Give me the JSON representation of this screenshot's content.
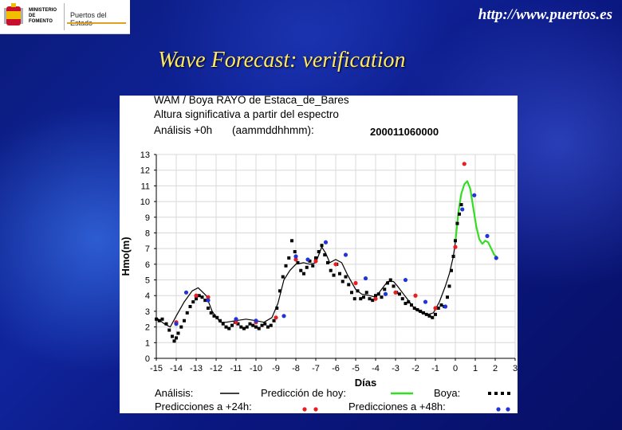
{
  "header": {
    "ministry": "MINISTERIO DE FOMENTO",
    "agency": "Puertos del Estado",
    "url": "http://www.puertos.es",
    "title": "Wave Forecast: verification"
  },
  "colors": {
    "analysis": "#000000",
    "forecast_today": "#33dd22",
    "buoy": "#000000",
    "pred24": "#e81e1e",
    "pred48": "#2234d8",
    "title_yellow": "#ffe766"
  },
  "chart_data": {
    "type": "line",
    "title": "WAM / Boya RAYO de Estaca_de_Bares",
    "subtitle": "Altura significativa a partir del espectro",
    "analysis_label": "Análisis +0h",
    "date_format_label": "(aammddhhmm):",
    "date_value": "200011060000",
    "xlabel": "Días",
    "ylabel": "Hmo(m)",
    "xlim": [
      -15,
      3
    ],
    "ylim": [
      0,
      13
    ],
    "xticks": [
      -15,
      -14,
      -13,
      -12,
      -11,
      -10,
      -9,
      -8,
      -7,
      -6,
      -5,
      -4,
      -3,
      -2,
      -1,
      0,
      1,
      2,
      3
    ],
    "yticks": [
      0,
      1,
      2,
      3,
      4,
      5,
      6,
      7,
      8,
      9,
      10,
      11,
      12,
      13
    ],
    "legend": {
      "analysis": "Análisis:",
      "forecast_today": "Predicción de hoy:",
      "buoy": "Boya:",
      "pred24": "Predicciones a +24h:",
      "pred48": "Predicciones a +48h:"
    },
    "series": [
      {
        "name": "Análisis",
        "style": "line",
        "x": [
          -15,
          -14.6,
          -14.3,
          -14,
          -13.6,
          -13.2,
          -12.9,
          -12.5,
          -12.2,
          -11.8,
          -11.5,
          -11,
          -10.5,
          -10,
          -9.6,
          -9.2,
          -8.9,
          -8.6,
          -8.3,
          -8,
          -7.6,
          -7.3,
          -7,
          -6.7,
          -6.5,
          -6.3,
          -6,
          -5.7,
          -5.4,
          -5,
          -4.7,
          -4.3,
          -4,
          -3.7,
          -3.4,
          -3.1,
          -2.9,
          -2.6,
          -2.3,
          -2,
          -1.7,
          -1.4,
          -1.1,
          -0.8,
          -0.5,
          -0.3,
          -0.1,
          0
        ],
        "values": [
          2.6,
          2.2,
          2.0,
          2.7,
          3.6,
          4.3,
          4.5,
          4.0,
          3.0,
          2.3,
          2.3,
          2.4,
          2.5,
          2.4,
          2.3,
          2.6,
          3.5,
          5.0,
          5.6,
          6.0,
          6.1,
          6.0,
          6.1,
          7.1,
          6.7,
          6.1,
          6.3,
          6.1,
          5.3,
          4.4,
          4.1,
          4.0,
          3.9,
          4.4,
          4.9,
          4.9,
          4.6,
          4.1,
          3.6,
          3.1,
          2.9,
          2.8,
          2.9,
          3.6,
          4.6,
          5.4,
          6.5,
          7.4
        ]
      },
      {
        "name": "Predicción de hoy",
        "style": "line",
        "x": [
          0,
          0.15,
          0.3,
          0.45,
          0.6,
          0.75,
          0.9,
          1.05,
          1.2,
          1.35,
          1.5,
          1.65,
          1.8,
          1.95,
          2.05
        ],
        "values": [
          7.4,
          9.3,
          10.5,
          11.1,
          11.3,
          10.8,
          9.6,
          8.4,
          7.6,
          7.3,
          7.5,
          7.4,
          7.0,
          6.6,
          6.5
        ]
      },
      {
        "name": "Boya",
        "style": "points",
        "x": [
          -15,
          -14.85,
          -14.7,
          -14.5,
          -14.35,
          -14.2,
          -14.1,
          -14,
          -13.9,
          -13.75,
          -13.6,
          -13.45,
          -13.3,
          -13.15,
          -13,
          -12.85,
          -12.7,
          -12.55,
          -12.4,
          -12.25,
          -12.1,
          -11.95,
          -11.8,
          -11.65,
          -11.5,
          -11.35,
          -11.2,
          -11.05,
          -10.9,
          -10.75,
          -10.6,
          -10.45,
          -10.3,
          -10.15,
          -10,
          -9.85,
          -9.7,
          -9.55,
          -9.4,
          -9.25,
          -9.1,
          -8.95,
          -8.8,
          -8.65,
          -8.5,
          -8.35,
          -8.2,
          -8.05,
          -7.9,
          -7.75,
          -7.6,
          -7.45,
          -7.3,
          -7.15,
          -7,
          -6.85,
          -6.7,
          -6.55,
          -6.4,
          -6.25,
          -6.1,
          -5.95,
          -5.8,
          -5.65,
          -5.5,
          -5.35,
          -5.2,
          -5.05,
          -4.9,
          -4.75,
          -4.6,
          -4.45,
          -4.3,
          -4.15,
          -4,
          -3.85,
          -3.7,
          -3.55,
          -3.4,
          -3.25,
          -3.1,
          -2.95,
          -2.8,
          -2.65,
          -2.5,
          -2.35,
          -2.2,
          -2.05,
          -1.9,
          -1.75,
          -1.6,
          -1.45,
          -1.3,
          -1.15,
          -1,
          -0.85,
          -0.7,
          -0.55,
          -0.4,
          -0.3,
          -0.2,
          -0.1,
          0,
          0.1,
          0.2,
          0.3
        ],
        "values": [
          2.5,
          2.4,
          2.5,
          2.2,
          1.8,
          1.4,
          1.1,
          1.3,
          1.6,
          2.0,
          2.4,
          2.9,
          3.3,
          3.6,
          3.8,
          4.0,
          3.9,
          3.7,
          3.2,
          2.9,
          2.7,
          2.6,
          2.4,
          2.2,
          2.0,
          1.9,
          2.1,
          2.3,
          2.2,
          2.0,
          1.9,
          2.0,
          2.2,
          2.1,
          2.0,
          1.9,
          2.1,
          2.2,
          2.0,
          2.1,
          2.4,
          3.2,
          4.3,
          5.2,
          5.9,
          6.4,
          7.5,
          6.8,
          6.1,
          5.6,
          5.4,
          5.8,
          6.2,
          5.9,
          6.4,
          6.8,
          7.2,
          6.6,
          6.1,
          5.6,
          5.3,
          6.0,
          5.4,
          4.9,
          5.2,
          4.7,
          4.2,
          3.8,
          4.3,
          3.8,
          3.9,
          4.2,
          3.8,
          3.7,
          4.0,
          4.1,
          3.9,
          4.4,
          4.8,
          5.0,
          4.6,
          4.2,
          4.1,
          3.8,
          3.5,
          3.6,
          3.4,
          3.2,
          3.1,
          3.0,
          2.9,
          2.8,
          2.7,
          2.6,
          2.8,
          3.2,
          3.4,
          3.3,
          3.9,
          4.6,
          5.6,
          6.5,
          7.5,
          8.6,
          9.2,
          9.8
        ]
      },
      {
        "name": "Predicciones a +24h",
        "style": "points",
        "x": [
          -14,
          -13,
          -12.4,
          -11,
          -10,
          -9,
          -8,
          -7,
          -6,
          -5,
          -4,
          -3,
          -2,
          -1,
          0,
          0.45
        ],
        "values": [
          2.3,
          4.0,
          3.9,
          2.3,
          2.3,
          2.6,
          6.3,
          6.2,
          6.0,
          4.8,
          3.8,
          4.2,
          4.0,
          3.2,
          7.1,
          12.4
        ]
      },
      {
        "name": "Predicciones a +48h",
        "style": "points",
        "x": [
          -14,
          -13.5,
          -12.4,
          -11,
          -10,
          -8.6,
          -8,
          -7.4,
          -6.5,
          -5.5,
          -4.5,
          -3.5,
          -2.5,
          -1.5,
          -0.5,
          0.35,
          0.95,
          1.6,
          2.05
        ],
        "values": [
          2.2,
          4.2,
          3.7,
          2.5,
          2.4,
          2.7,
          6.5,
          6.3,
          7.4,
          6.6,
          5.1,
          4.1,
          5.0,
          3.6,
          3.3,
          9.5,
          10.4,
          7.8,
          6.4
        ]
      }
    ]
  }
}
